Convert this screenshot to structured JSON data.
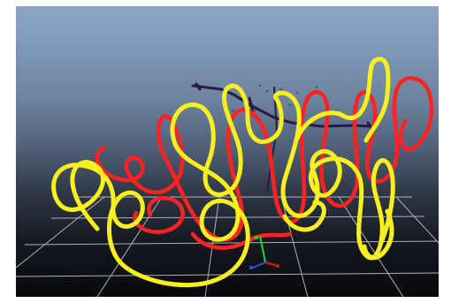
{
  "viewport": {
    "label": "",
    "curves": [
      {
        "name": "red-curve",
        "color": "#ff2222"
      },
      {
        "name": "yellow-curve",
        "color": "#f7ef1f"
      }
    ],
    "colors": {
      "grid": "#c8ccd2",
      "skeleton": "#2a1a4a",
      "axis_x": "#e01818",
      "axis_y": "#27d127",
      "axis_z": "#3050ff"
    }
  }
}
